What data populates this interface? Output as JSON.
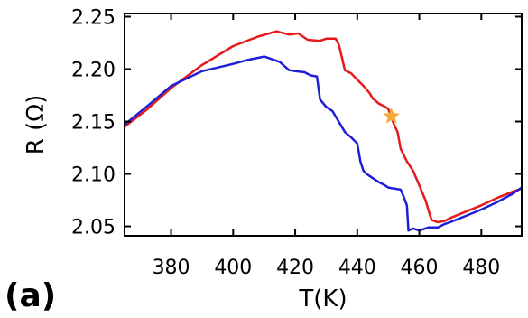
{
  "panel_label": "(a)",
  "chart_data": {
    "type": "line",
    "xlabel": "T(K)",
    "ylabel": "R (Ω)",
    "xlim": [
      365,
      493
    ],
    "ylim": [
      2.041,
      2.253
    ],
    "xticks": [
      380,
      400,
      420,
      440,
      460,
      480
    ],
    "xtick_labels": [
      "380",
      "400",
      "420",
      "440",
      "460",
      "480"
    ],
    "yticks": [
      2.05,
      2.1,
      2.15,
      2.2,
      2.25
    ],
    "ytick_labels": [
      "2.05",
      "2.10",
      "2.15",
      "2.20",
      "2.25"
    ],
    "grid": false,
    "legend": false,
    "series": [
      {
        "color": "#e41a1c",
        "x": [
          365,
          372,
          380,
          390,
          400,
          408,
          414,
          418,
          421,
          424,
          428,
          430,
          433,
          434,
          435,
          436,
          438,
          440,
          442,
          444,
          445,
          447,
          449,
          450,
          451,
          452,
          453,
          454,
          456,
          458,
          460,
          462,
          463,
          464,
          466,
          468,
          470,
          475,
          480,
          485,
          490,
          493
        ],
        "y": [
          2.145,
          2.161,
          2.182,
          2.204,
          2.222,
          2.231,
          2.236,
          2.233,
          2.234,
          2.228,
          2.227,
          2.229,
          2.229,
          2.224,
          2.212,
          2.199,
          2.196,
          2.19,
          2.184,
          2.177,
          2.172,
          2.167,
          2.164,
          2.162,
          2.154,
          2.146,
          2.14,
          2.124,
          2.112,
          2.103,
          2.089,
          2.075,
          2.065,
          2.056,
          2.054,
          2.055,
          2.058,
          2.064,
          2.07,
          2.077,
          2.083,
          2.086
        ]
      },
      {
        "color": "#1f1fd6",
        "x": [
          365,
          372,
          380,
          390,
          400,
          405,
          410,
          412,
          415,
          418,
          420,
          423,
          425,
          427,
          428,
          430,
          432,
          434,
          436,
          438,
          440,
          441,
          442,
          443,
          445,
          447,
          449,
          450,
          452,
          454,
          455,
          456,
          456.5,
          458,
          460,
          463,
          466,
          468,
          470,
          475,
          480,
          485,
          490,
          493
        ],
        "y": [
          2.147,
          2.164,
          2.184,
          2.198,
          2.205,
          2.209,
          2.212,
          2.21,
          2.207,
          2.199,
          2.198,
          2.197,
          2.194,
          2.193,
          2.171,
          2.164,
          2.16,
          2.15,
          2.14,
          2.135,
          2.129,
          2.112,
          2.103,
          2.1,
          2.096,
          2.092,
          2.089,
          2.087,
          2.086,
          2.085,
          2.078,
          2.07,
          2.046,
          2.048,
          2.046,
          2.049,
          2.049,
          2.052,
          2.054,
          2.06,
          2.066,
          2.073,
          2.081,
          2.087
        ]
      }
    ],
    "marker": {
      "shape": "star",
      "x": 451,
      "y": 2.155,
      "color": "#f6a93b"
    }
  }
}
